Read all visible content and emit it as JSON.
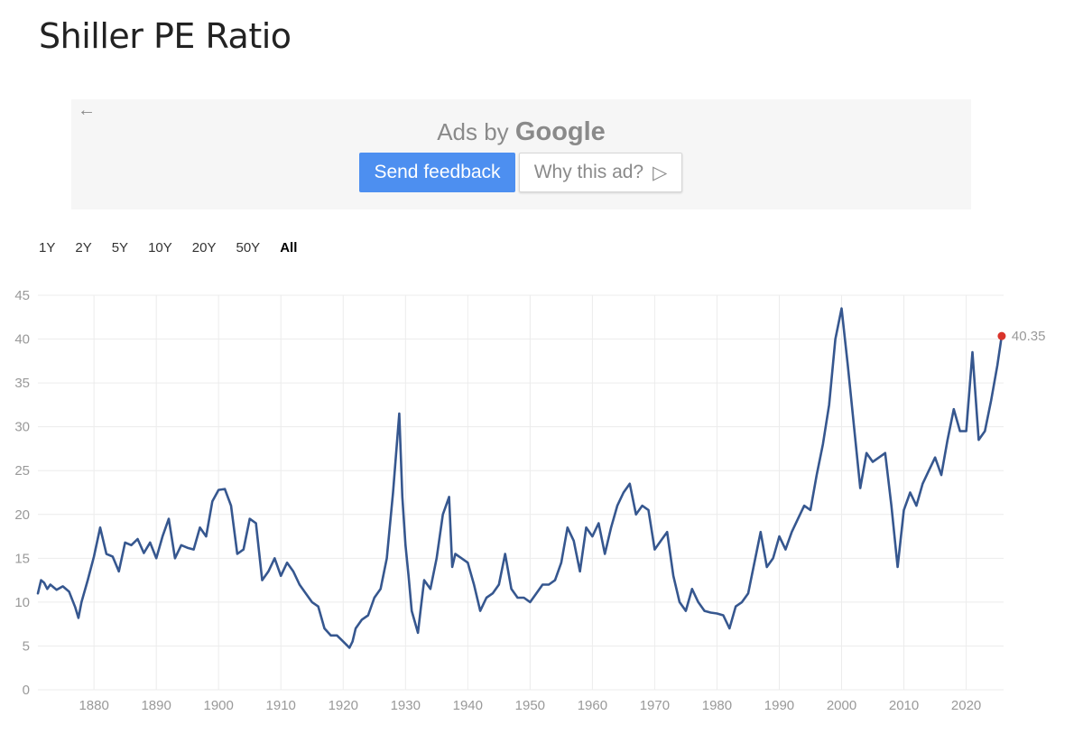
{
  "page": {
    "title": "Shiller PE Ratio"
  },
  "ad": {
    "back_icon": "←",
    "ads_by_label": "Ads by",
    "google_label": "Google",
    "send_feedback_label": "Send feedback",
    "why_this_ad_label": "Why this ad?",
    "adchoices_icon": "▷"
  },
  "range_tabs": [
    "1Y",
    "2Y",
    "5Y",
    "10Y",
    "20Y",
    "50Y",
    "All"
  ],
  "active_range": "All",
  "chart_data": {
    "type": "line",
    "title": "Shiller PE Ratio",
    "xlabel": "",
    "ylabel": "",
    "xlim": [
      1871,
      2026
    ],
    "ylim": [
      0,
      45
    ],
    "yticks": [
      0,
      5,
      10,
      15,
      20,
      25,
      30,
      35,
      40,
      45
    ],
    "xticks": [
      1880,
      1890,
      1900,
      1910,
      1920,
      1930,
      1940,
      1950,
      1960,
      1970,
      1980,
      1990,
      2000,
      2010,
      2020
    ],
    "grid": true,
    "line_color": "#36578f",
    "last_point_color": "#d9342b",
    "last_value_label": "40.35",
    "series": [
      {
        "x": [
          1871,
          1871.5,
          1872,
          1872.5,
          1873,
          1874,
          1875,
          1876,
          1877,
          1877.5,
          1878,
          1879,
          1880,
          1881,
          1882,
          1883,
          1884,
          1885,
          1886,
          1887,
          1888,
          1889,
          1890,
          1891,
          1892,
          1893,
          1894,
          1895,
          1896,
          1897,
          1898,
          1899,
          1900,
          1901,
          1902,
          1903,
          1904,
          1905,
          1906,
          1907,
          1908,
          1909,
          1910,
          1911,
          1912,
          1913,
          1914,
          1915,
          1916,
          1917,
          1918,
          1919,
          1920,
          1921,
          1921.5,
          1922,
          1923,
          1924,
          1925,
          1926,
          1927,
          1928,
          1929,
          1929.5,
          1930,
          1930.5,
          1931,
          1932,
          1932.5,
          1933,
          1934,
          1935,
          1936,
          1937,
          1937.5,
          1938,
          1939,
          1940,
          1941,
          1942,
          1943,
          1944,
          1945,
          1946,
          1947,
          1948,
          1949,
          1950,
          1951,
          1952,
          1953,
          1954,
          1955,
          1956,
          1957,
          1958,
          1959,
          1960,
          1961,
          1962,
          1963,
          1964,
          1965,
          1966,
          1967,
          1968,
          1969,
          1970,
          1971,
          1972,
          1973,
          1974,
          1975,
          1976,
          1977,
          1978,
          1979,
          1980,
          1981,
          1982,
          1983,
          1984,
          1985,
          1986,
          1987,
          1988,
          1989,
          1990,
          1991,
          1992,
          1993,
          1994,
          1995,
          1996,
          1997,
          1998,
          1999,
          2000,
          2001,
          2002,
          2003,
          2004,
          2005,
          2006,
          2007,
          2008,
          2009,
          2010,
          2011,
          2012,
          2013,
          2014,
          2015,
          2016,
          2017,
          2018,
          2019,
          2020,
          2021,
          2022,
          2023,
          2024,
          2025,
          2025.7
        ],
        "y": [
          11.0,
          12.5,
          12.2,
          11.5,
          12.0,
          11.4,
          11.8,
          11.2,
          9.4,
          8.2,
          10.0,
          12.5,
          15.2,
          18.5,
          15.5,
          15.2,
          13.5,
          16.8,
          16.5,
          17.2,
          15.6,
          16.8,
          15.0,
          17.5,
          19.5,
          15.0,
          16.5,
          16.2,
          16.0,
          18.5,
          17.5,
          21.5,
          22.8,
          22.9,
          21.0,
          15.5,
          16.0,
          19.5,
          19.0,
          12.5,
          13.5,
          15.0,
          13.0,
          14.5,
          13.5,
          12.0,
          11.0,
          10.0,
          9.5,
          7.0,
          6.2,
          6.2,
          5.5,
          4.8,
          5.5,
          7.0,
          8.0,
          8.5,
          10.5,
          11.5,
          15.0,
          22.5,
          31.5,
          22.0,
          16.5,
          13.0,
          9.0,
          6.5,
          9.5,
          12.5,
          11.5,
          15.0,
          20.0,
          22.0,
          14.0,
          15.5,
          15.0,
          14.5,
          12.0,
          9.0,
          10.5,
          11.0,
          12.0,
          15.5,
          11.5,
          10.5,
          10.5,
          10.0,
          11.0,
          12.0,
          12.0,
          12.5,
          14.5,
          18.5,
          17.0,
          13.5,
          18.5,
          17.5,
          19.0,
          15.5,
          18.5,
          21.0,
          22.5,
          23.5,
          20.0,
          21.0,
          20.5,
          16.0,
          17.0,
          18.0,
          13.0,
          10.0,
          9.0,
          11.5,
          10.0,
          9.0,
          8.8,
          8.7,
          8.5,
          7.0,
          9.5,
          10.0,
          11.0,
          14.5,
          18.0,
          14.0,
          15.0,
          17.5,
          16.0,
          18.0,
          19.5,
          21.0,
          20.5,
          24.5,
          28.0,
          32.5,
          40.0,
          43.5,
          37.0,
          30.0,
          23.0,
          27.0,
          26.0,
          26.5,
          27.0,
          21.0,
          14.0,
          20.5,
          22.5,
          21.0,
          23.5,
          25.0,
          26.5,
          24.5,
          28.5,
          32.0,
          29.5,
          29.5,
          38.5,
          28.5,
          29.5,
          33.0,
          37.0,
          40.35
        ]
      }
    ]
  }
}
